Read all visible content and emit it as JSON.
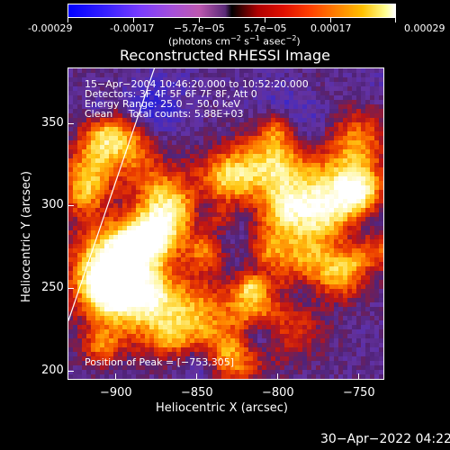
{
  "colorbar": {
    "labels": [
      "-0.00029",
      "-0.00017",
      "−5.7e−05",
      "5.7e−05",
      "0.00017",
      "0.00029"
    ],
    "units_prefix": "(photons cm",
    "units_exp1": "−2",
    "units_mid": " s",
    "units_exp2": "−1",
    "units_mid2": " asec",
    "units_exp3": "−2",
    "units_suffix": ")"
  },
  "title": "Reconstructed RHESSI Image",
  "annotations": {
    "time_range": "15−Apr−2004 10:46:20.000 to 10:52:20.000",
    "detectors": "Detectors: 3F 4F 5F 6F 7F 8F, Att 0",
    "energy": "Energy Range: 25.0 − 50.0 keV",
    "method": "Clean     Total counts: 5.88E+03",
    "peak": "Position of Peak = [−753,305]"
  },
  "chart_data": {
    "type": "heatmap",
    "xlabel": "Heliocentric X (arcsec)",
    "ylabel": "Heliocentric Y (arcsec)",
    "xlim": [
      -930,
      -735
    ],
    "ylim": [
      194,
      382
    ],
    "x_ticks": [
      "−900",
      "−850",
      "−800",
      "−750"
    ],
    "x_tick_values": [
      -900,
      -850,
      -800,
      -750
    ],
    "y_ticks": [
      "200",
      "250",
      "300",
      "350"
    ],
    "y_tick_values": [
      200,
      250,
      300,
      350
    ],
    "grid": false
  },
  "timestamp": "30−Apr−2022 04:22"
}
